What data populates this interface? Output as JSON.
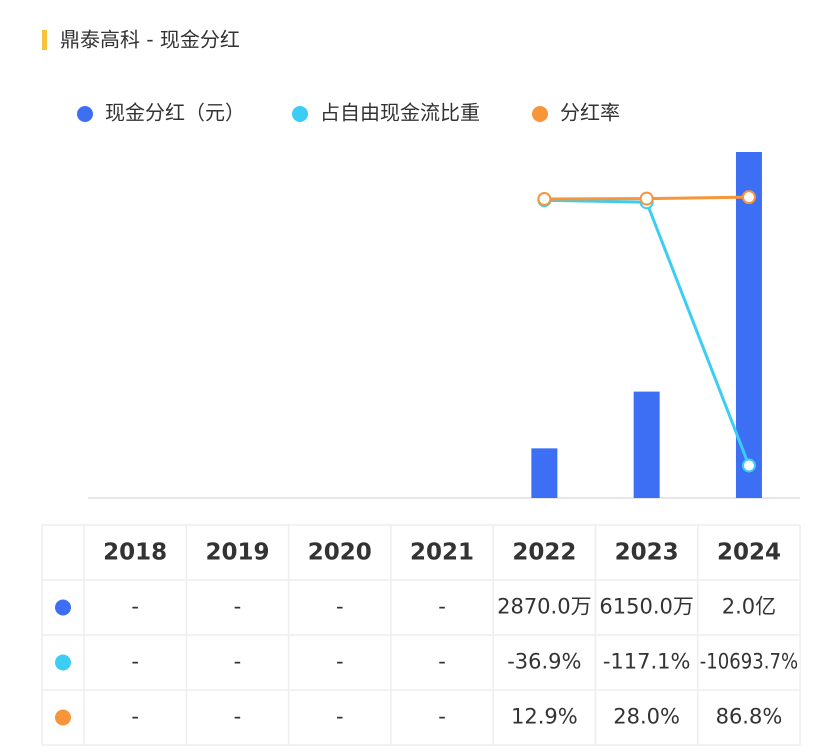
{
  "chart_data": {
    "type": "bar",
    "title": "鼎泰高科 - 现金分红",
    "categories": [
      "2018",
      "2019",
      "2020",
      "2021",
      "2022",
      "2023",
      "2024"
    ],
    "ylim": [
      0,
      200000000
    ],
    "y2lim": [
      -12000,
      1900
    ],
    "series": [
      {
        "name": "现金分红（元）",
        "type": "bar",
        "color": "#3d6ff5",
        "values": [
          null,
          null,
          null,
          null,
          28700000,
          61500000,
          200000000
        ],
        "value_labels": [
          "-",
          "-",
          "-",
          "-",
          "2870.0万",
          "6150.0万",
          "2.0亿"
        ]
      },
      {
        "name": "占自由现金流比重",
        "type": "line",
        "axis": "y2",
        "color": "#3ccdf5",
        "values": [
          null,
          null,
          null,
          null,
          -36.9,
          -117.1,
          -10693.7
        ],
        "value_labels": [
          "-",
          "-",
          "-",
          "-",
          "-36.9%",
          "-117.1%",
          "-10693.7%"
        ]
      },
      {
        "name": "分红率",
        "type": "line",
        "axis": "y2",
        "color": "#f7953a",
        "values": [
          null,
          null,
          null,
          null,
          12.9,
          28.0,
          86.8
        ],
        "value_labels": [
          "-",
          "-",
          "-",
          "-",
          "12.9%",
          "28.0%",
          "86.8%"
        ]
      }
    ]
  }
}
